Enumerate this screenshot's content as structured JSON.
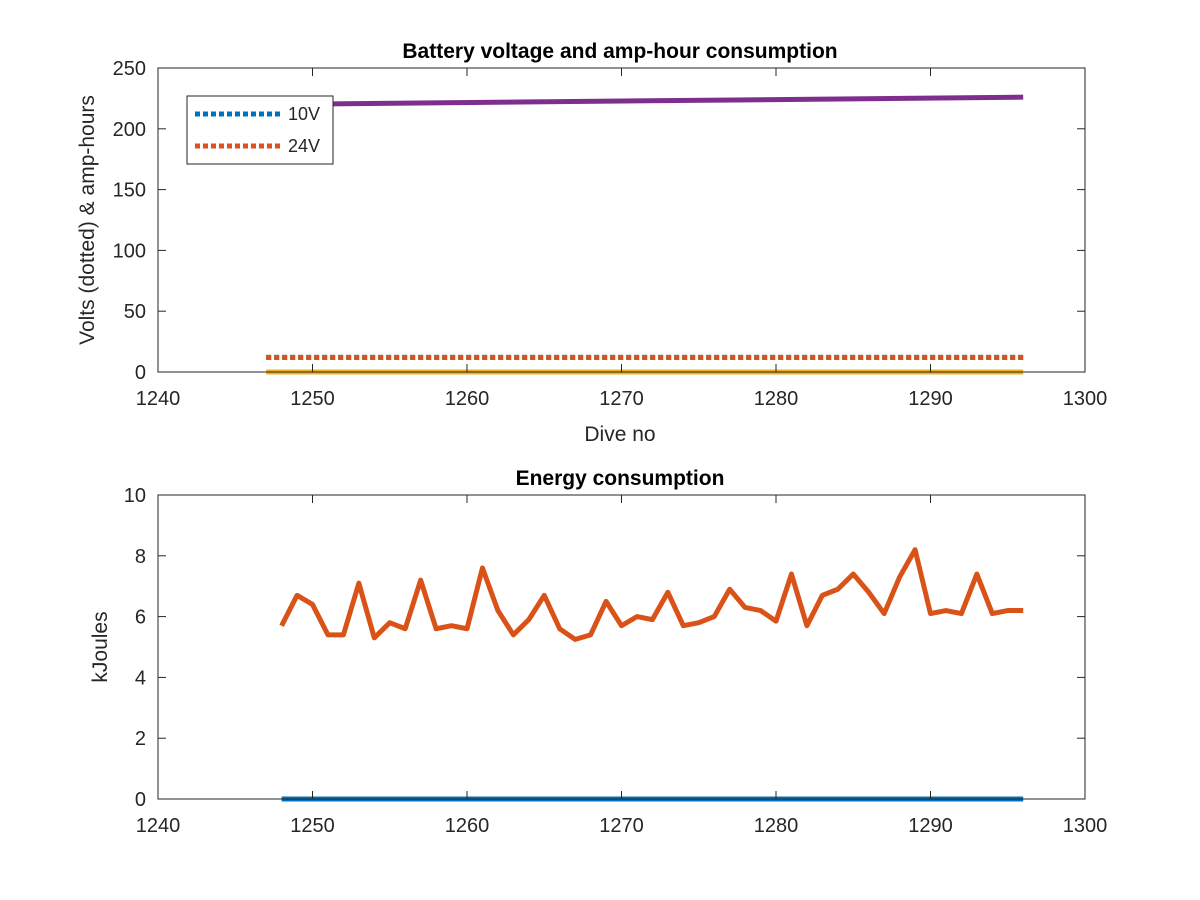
{
  "chart_data": [
    {
      "type": "line",
      "title": "Battery voltage and amp-hour consumption",
      "xlabel": "Dive no",
      "ylabel": "Volts (dotted) & amp-hours",
      "xlim": [
        1240,
        1300
      ],
      "ylim": [
        0,
        250
      ],
      "xticks": [
        1240,
        1250,
        1260,
        1270,
        1280,
        1290,
        1300
      ],
      "yticks": [
        0,
        50,
        100,
        150,
        200,
        250
      ],
      "grid": false,
      "legend_position": "top-left",
      "series": [
        {
          "name": "10V",
          "style": "dotted",
          "color": "#0072BD",
          "x": [
            1247,
            1296
          ],
          "values": [
            12,
            12
          ]
        },
        {
          "name": "24V",
          "style": "dotted",
          "color": "#D95319",
          "x": [
            1247,
            1296
          ],
          "values": [
            12,
            12
          ]
        },
        {
          "style": "solid",
          "color": "#EDB120",
          "x": [
            1247,
            1296
          ],
          "values": [
            0,
            0
          ]
        },
        {
          "style": "solid",
          "color": "#7E2F8E",
          "x": [
            1247,
            1296
          ],
          "values": [
            220,
            226
          ]
        }
      ]
    },
    {
      "type": "line",
      "title": "Energy consumption",
      "xlabel": "",
      "ylabel": "kJoules",
      "xlim": [
        1240,
        1300
      ],
      "ylim": [
        0,
        10
      ],
      "xticks": [
        1240,
        1250,
        1260,
        1270,
        1280,
        1290,
        1300
      ],
      "yticks": [
        0,
        2,
        4,
        6,
        8,
        10
      ],
      "grid": false,
      "series": [
        {
          "style": "solid",
          "color": "#0072BD",
          "x": [
            1248,
            1296
          ],
          "values": [
            0,
            0
          ]
        },
        {
          "style": "solid",
          "color": "#D95319",
          "x": [
            1248,
            1249,
            1250,
            1251,
            1252,
            1253,
            1254,
            1255,
            1256,
            1257,
            1258,
            1259,
            1260,
            1261,
            1262,
            1263,
            1264,
            1265,
            1266,
            1267,
            1268,
            1269,
            1270,
            1271,
            1272,
            1273,
            1274,
            1275,
            1276,
            1277,
            1278,
            1279,
            1280,
            1281,
            1282,
            1283,
            1284,
            1285,
            1286,
            1287,
            1288,
            1289,
            1290,
            1291,
            1292,
            1293,
            1294,
            1295,
            1296
          ],
          "values": [
            5.7,
            6.7,
            6.4,
            5.4,
            5.4,
            7.1,
            5.3,
            5.8,
            5.6,
            7.2,
            5.6,
            5.7,
            5.6,
            7.6,
            6.2,
            5.4,
            5.9,
            6.7,
            5.6,
            5.25,
            5.4,
            6.5,
            5.7,
            6.0,
            5.9,
            6.8,
            5.7,
            5.8,
            6.0,
            6.9,
            6.3,
            6.2,
            5.85,
            7.4,
            5.7,
            6.7,
            6.9,
            7.4,
            6.8,
            6.1,
            7.3,
            8.2,
            6.1,
            6.2,
            6.1,
            7.4,
            6.1,
            6.2,
            6.2
          ]
        }
      ]
    }
  ]
}
